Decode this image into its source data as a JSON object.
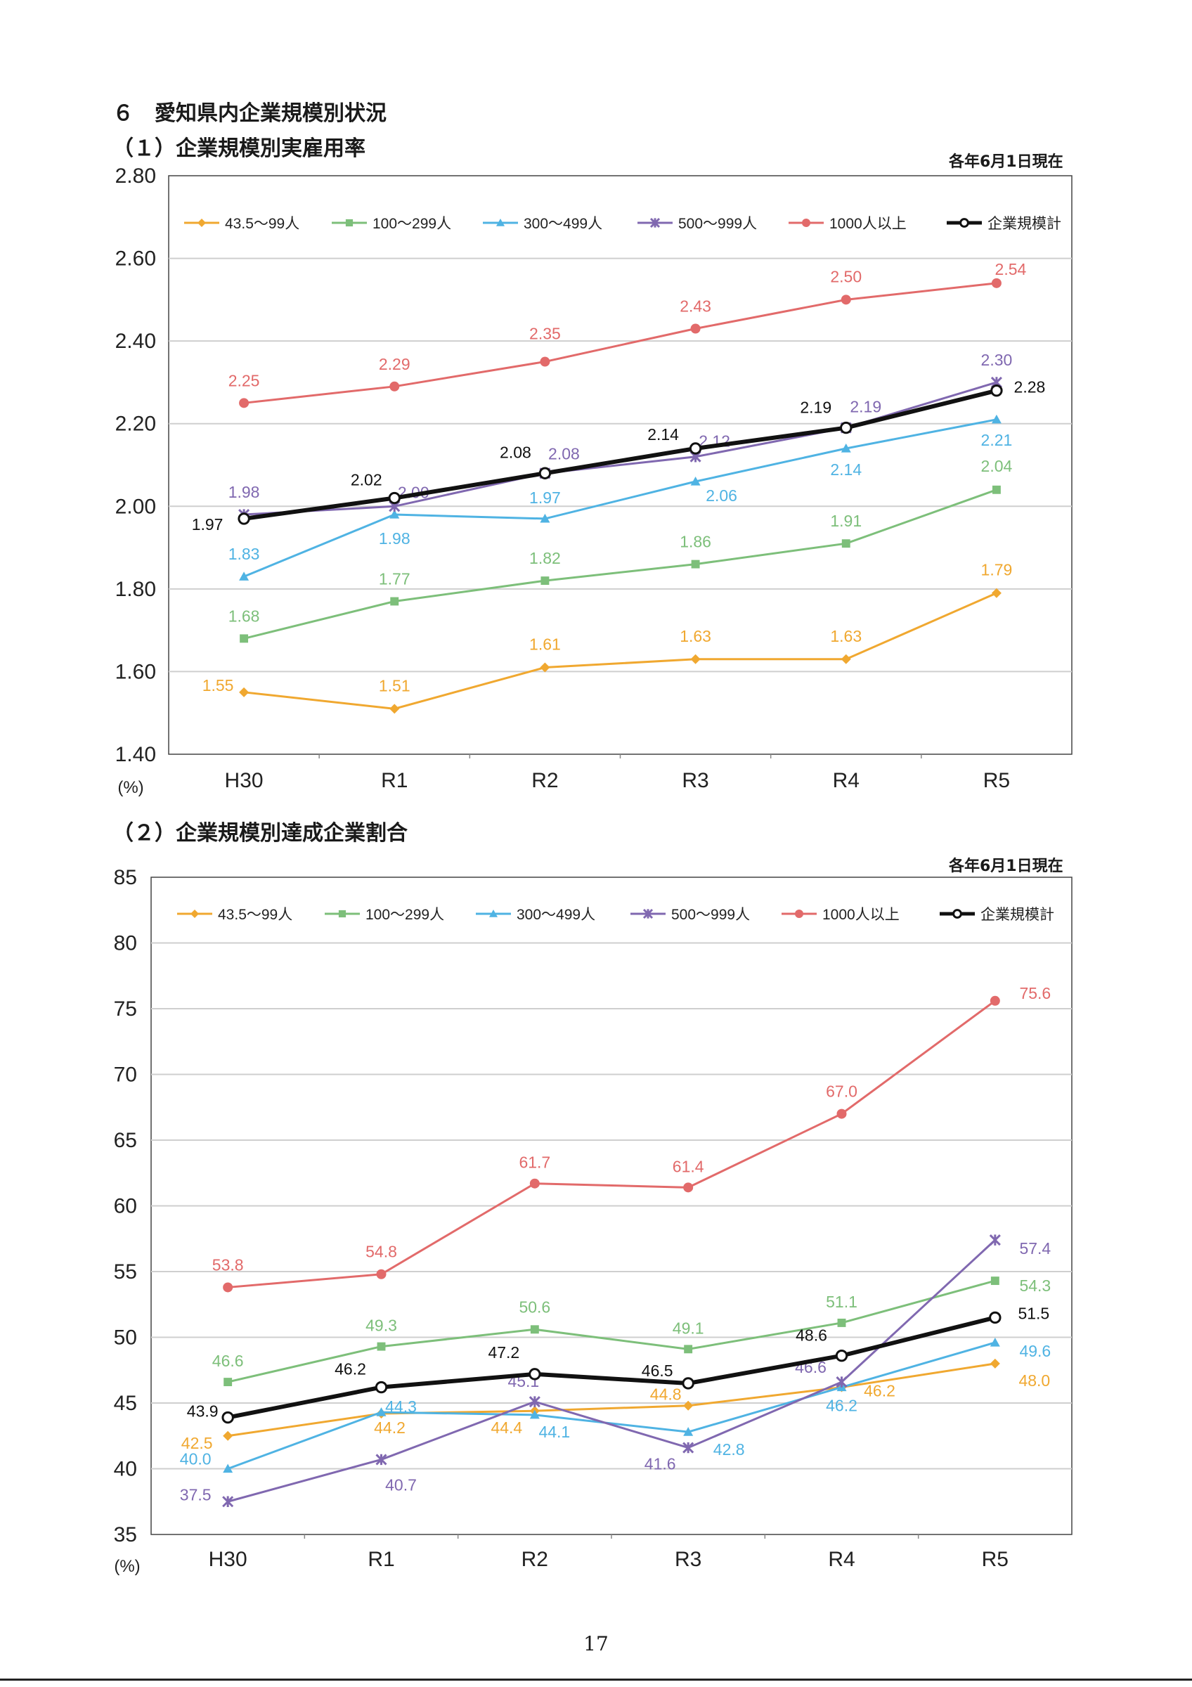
{
  "page": {
    "section_title": "６　愛知県内企業規模別状況",
    "page_number": "17"
  },
  "chart_data": [
    {
      "type": "line",
      "title": "（１）企業規模別実雇用率",
      "as_of": "各年6月1日現在",
      "unit_label": "(%)",
      "categories": [
        "H30",
        "R1",
        "R2",
        "R3",
        "R4",
        "R5"
      ],
      "ylim": [
        1.4,
        2.8
      ],
      "yticks": [
        "1.40",
        "1.60",
        "1.80",
        "2.00",
        "2.20",
        "2.40",
        "2.60",
        "2.80"
      ],
      "decimals": 2,
      "grid": true,
      "legend_position": "top",
      "series": [
        {
          "name": "43.5～99人",
          "color": "#f0a830",
          "marker": "diamond",
          "values": [
            1.55,
            1.51,
            1.61,
            1.63,
            1.63,
            1.79
          ]
        },
        {
          "name": "100～299人",
          "color": "#7dbf7a",
          "marker": "square",
          "values": [
            1.68,
            1.77,
            1.82,
            1.86,
            1.91,
            2.04
          ]
        },
        {
          "name": "300～499人",
          "color": "#4fb3e3",
          "marker": "triangle",
          "values": [
            1.83,
            1.98,
            1.97,
            2.06,
            2.14,
            2.21
          ]
        },
        {
          "name": "500～999人",
          "color": "#8068b0",
          "marker": "x",
          "values": [
            1.98,
            2.0,
            2.08,
            2.12,
            2.19,
            2.3
          ]
        },
        {
          "name": "1000人以上",
          "color": "#e26a6a",
          "marker": "circle",
          "values": [
            2.25,
            2.29,
            2.35,
            2.43,
            2.5,
            2.54
          ]
        },
        {
          "name": "企業規模計",
          "color": "#111111",
          "marker": "open-circle",
          "bold": true,
          "values": [
            1.97,
            2.02,
            2.08,
            2.14,
            2.19,
            2.28
          ]
        }
      ]
    },
    {
      "type": "line",
      "title": "（２）企業規模別達成企業割合",
      "as_of": "各年6月1日現在",
      "unit_label": "(%)",
      "categories": [
        "H30",
        "R1",
        "R2",
        "R3",
        "R4",
        "R5"
      ],
      "ylim": [
        35,
        85
      ],
      "yticks": [
        "35",
        "40",
        "45",
        "50",
        "55",
        "60",
        "65",
        "70",
        "75",
        "80",
        "85"
      ],
      "decimals": 1,
      "grid": true,
      "legend_position": "top",
      "series": [
        {
          "name": "43.5～99人",
          "color": "#f0a830",
          "marker": "diamond",
          "values": [
            42.5,
            44.2,
            44.4,
            44.8,
            46.2,
            48.0
          ]
        },
        {
          "name": "100～299人",
          "color": "#7dbf7a",
          "marker": "square",
          "values": [
            46.6,
            49.3,
            50.6,
            49.1,
            51.1,
            54.3
          ]
        },
        {
          "name": "300～499人",
          "color": "#4fb3e3",
          "marker": "triangle",
          "values": [
            40.0,
            44.3,
            44.1,
            42.8,
            46.2,
            49.6
          ]
        },
        {
          "name": "500～999人",
          "color": "#8068b0",
          "marker": "x",
          "values": [
            37.5,
            40.7,
            45.1,
            41.6,
            46.6,
            57.4
          ]
        },
        {
          "name": "1000人以上",
          "color": "#e26a6a",
          "marker": "circle",
          "values": [
            53.8,
            54.8,
            61.7,
            61.4,
            67.0,
            75.6
          ]
        },
        {
          "name": "企業規模計",
          "color": "#111111",
          "marker": "open-circle",
          "bold": true,
          "values": [
            43.9,
            46.2,
            47.2,
            46.5,
            48.6,
            51.5
          ]
        }
      ]
    }
  ]
}
